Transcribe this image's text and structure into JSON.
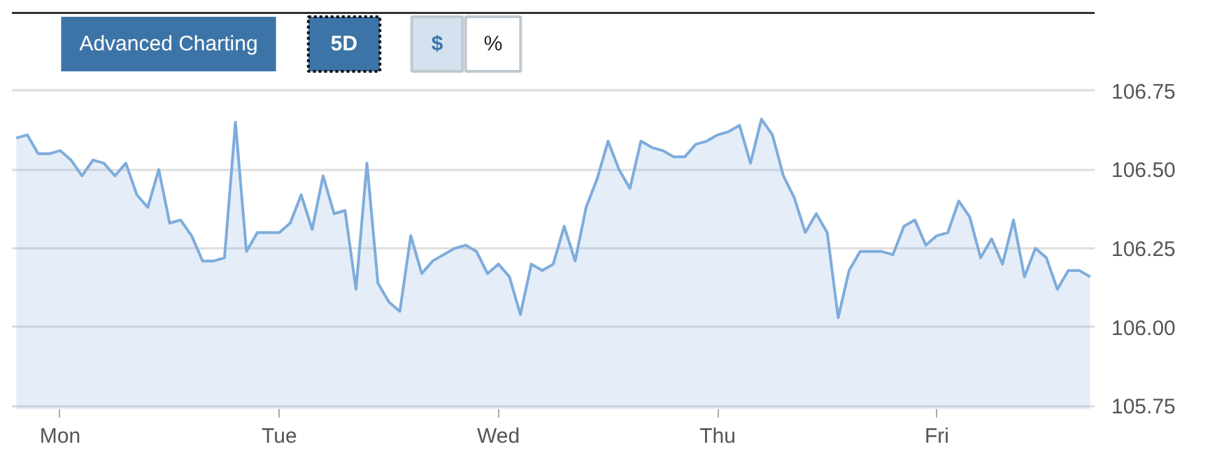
{
  "chart_data": {
    "type": "area",
    "categories": [
      null,
      null,
      null,
      null,
      "Mon",
      null,
      null,
      null,
      null,
      null,
      null,
      null,
      null,
      null,
      null,
      null,
      null,
      null,
      null,
      null,
      null,
      null,
      null,
      null,
      "Tue",
      null,
      null,
      null,
      null,
      null,
      null,
      null,
      null,
      null,
      null,
      null,
      null,
      null,
      null,
      null,
      null,
      null,
      null,
      null,
      "Wed",
      null,
      null,
      null,
      null,
      null,
      null,
      null,
      null,
      null,
      null,
      null,
      null,
      null,
      null,
      null,
      null,
      null,
      null,
      null,
      "Thu",
      null,
      null,
      null,
      null,
      null,
      null,
      null,
      null,
      null,
      null,
      null,
      null,
      null,
      null,
      null,
      null,
      null,
      null,
      null,
      "Fri",
      null,
      null,
      null,
      null,
      null,
      null,
      null,
      null,
      null,
      null,
      null,
      null,
      null,
      null
    ],
    "series": [
      {
        "color": "#7eacdc",
        "values": [
          106.6,
          106.61,
          106.55,
          106.55,
          106.56,
          106.53,
          106.48,
          106.53,
          106.52,
          106.48,
          106.52,
          106.42,
          106.38,
          106.5,
          106.33,
          106.34,
          106.29,
          106.21,
          106.21,
          106.22,
          106.65,
          106.24,
          106.3,
          106.3,
          106.3,
          106.33,
          106.42,
          106.31,
          106.48,
          106.36,
          106.37,
          106.12,
          106.52,
          106.14,
          106.08,
          106.05,
          106.29,
          106.17,
          106.21,
          106.23,
          106.25,
          106.26,
          106.24,
          106.17,
          106.2,
          106.16,
          106.04,
          106.2,
          106.18,
          106.2,
          106.32,
          106.21,
          106.38,
          106.47,
          106.59,
          106.5,
          106.44,
          106.59,
          106.57,
          106.56,
          106.54,
          106.54,
          106.58,
          106.59,
          106.61,
          106.62,
          106.64,
          106.52,
          106.66,
          106.61,
          106.48,
          106.41,
          106.3,
          106.36,
          106.3,
          106.03,
          106.18,
          106.24,
          106.24,
          106.24,
          106.23,
          106.32,
          106.34,
          106.26,
          106.29,
          106.3,
          106.4,
          106.35,
          106.22,
          106.28,
          106.2,
          106.34,
          106.16,
          106.25,
          106.22,
          106.12,
          106.18,
          106.18,
          106.16
        ]
      }
    ],
    "ylim": [
      105.74,
      107.0
    ],
    "yticks": [
      {
        "value": 105.75,
        "label": "105.75"
      },
      {
        "value": 106.0,
        "label": "106.00"
      },
      {
        "value": 106.25,
        "label": "106.25"
      },
      {
        "value": 106.5,
        "label": "106.50"
      },
      {
        "value": 106.75,
        "label": "106.75"
      }
    ],
    "grid": "y",
    "annotations": [
      "Advanced Charting",
      "5D",
      "$",
      "%"
    ]
  }
}
